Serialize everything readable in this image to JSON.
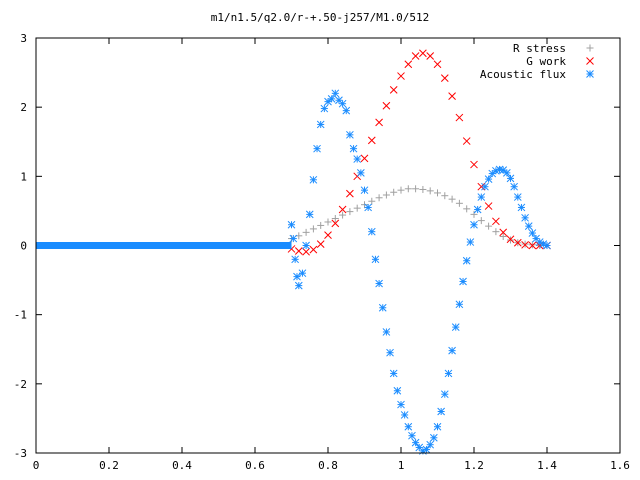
{
  "chart_data": {
    "type": "scatter",
    "title": "m1/n1.5/q2.0/r-+.50-j257/M1.0/512",
    "xlabel": "",
    "ylabel": "",
    "xlim": [
      0,
      1.6
    ],
    "ylim": [
      -3,
      3
    ],
    "xticks": [
      "0",
      "0.2",
      "0.4",
      "0.6",
      "0.8",
      "1",
      "1.2",
      "1.4",
      "1.6"
    ],
    "xtick_values": [
      0,
      0.2,
      0.4,
      0.6,
      0.8,
      1.0,
      1.2,
      1.4,
      1.6
    ],
    "yticks": [
      "-3",
      "-2",
      "-1",
      "0",
      "1",
      "2",
      "3"
    ],
    "ytick_values": [
      -3,
      -2,
      -1,
      0,
      1,
      2,
      3
    ],
    "grid": false,
    "legend_position": "top-right",
    "series": [
      {
        "name": "R stress",
        "marker": "plus",
        "color": "#a0a0a0",
        "points": [
          [
            0.7,
            0.1
          ],
          [
            0.72,
            0.14
          ],
          [
            0.74,
            0.19
          ],
          [
            0.76,
            0.24
          ],
          [
            0.78,
            0.29
          ],
          [
            0.8,
            0.34
          ],
          [
            0.82,
            0.39
          ],
          [
            0.84,
            0.44
          ],
          [
            0.86,
            0.49
          ],
          [
            0.88,
            0.54
          ],
          [
            0.9,
            0.59
          ],
          [
            0.92,
            0.64
          ],
          [
            0.94,
            0.69
          ],
          [
            0.96,
            0.73
          ],
          [
            0.98,
            0.77
          ],
          [
            1.0,
            0.8
          ],
          [
            1.02,
            0.82
          ],
          [
            1.04,
            0.82
          ],
          [
            1.06,
            0.81
          ],
          [
            1.08,
            0.79
          ],
          [
            1.1,
            0.76
          ],
          [
            1.12,
            0.72
          ],
          [
            1.14,
            0.67
          ],
          [
            1.16,
            0.61
          ],
          [
            1.18,
            0.53
          ],
          [
            1.2,
            0.45
          ],
          [
            1.22,
            0.36
          ],
          [
            1.24,
            0.28
          ],
          [
            1.26,
            0.2
          ],
          [
            1.28,
            0.13
          ],
          [
            1.3,
            0.08
          ],
          [
            1.32,
            0.04
          ],
          [
            1.34,
            0.02
          ],
          [
            1.36,
            0.01
          ],
          [
            1.38,
            0.0
          ],
          [
            1.4,
            0.0
          ]
        ]
      },
      {
        "name": "G work",
        "marker": "cross",
        "color": "#ff0000",
        "points": [
          [
            0.7,
            -0.05
          ],
          [
            0.72,
            -0.08
          ],
          [
            0.74,
            -0.09
          ],
          [
            0.76,
            -0.06
          ],
          [
            0.78,
            0.02
          ],
          [
            0.8,
            0.15
          ],
          [
            0.82,
            0.32
          ],
          [
            0.84,
            0.52
          ],
          [
            0.86,
            0.75
          ],
          [
            0.88,
            1.0
          ],
          [
            0.9,
            1.26
          ],
          [
            0.92,
            1.52
          ],
          [
            0.94,
            1.78
          ],
          [
            0.96,
            2.02
          ],
          [
            0.98,
            2.25
          ],
          [
            1.0,
            2.45
          ],
          [
            1.02,
            2.62
          ],
          [
            1.04,
            2.74
          ],
          [
            1.06,
            2.78
          ],
          [
            1.08,
            2.74
          ],
          [
            1.1,
            2.62
          ],
          [
            1.12,
            2.42
          ],
          [
            1.14,
            2.16
          ],
          [
            1.16,
            1.85
          ],
          [
            1.18,
            1.51
          ],
          [
            1.2,
            1.17
          ],
          [
            1.22,
            0.85
          ],
          [
            1.24,
            0.57
          ],
          [
            1.26,
            0.35
          ],
          [
            1.28,
            0.19
          ],
          [
            1.3,
            0.09
          ],
          [
            1.32,
            0.04
          ],
          [
            1.34,
            0.01
          ],
          [
            1.36,
            0.0
          ],
          [
            1.38,
            0.0
          ],
          [
            1.4,
            0.0
          ]
        ]
      },
      {
        "name": "Acoustic flux",
        "marker": "star",
        "color": "#1a8cff",
        "points": [
          [
            0.7,
            0.3
          ],
          [
            0.705,
            0.1
          ],
          [
            0.71,
            -0.2
          ],
          [
            0.715,
            -0.45
          ],
          [
            0.72,
            -0.58
          ],
          [
            0.73,
            -0.4
          ],
          [
            0.74,
            0.0
          ],
          [
            0.75,
            0.45
          ],
          [
            0.76,
            0.95
          ],
          [
            0.77,
            1.4
          ],
          [
            0.78,
            1.75
          ],
          [
            0.79,
            1.98
          ],
          [
            0.8,
            2.08
          ],
          [
            0.81,
            2.12
          ],
          [
            0.82,
            2.2
          ],
          [
            0.83,
            2.1
          ],
          [
            0.84,
            2.05
          ],
          [
            0.85,
            1.95
          ],
          [
            0.86,
            1.6
          ],
          [
            0.87,
            1.4
          ],
          [
            0.88,
            1.25
          ],
          [
            0.89,
            1.05
          ],
          [
            0.9,
            0.8
          ],
          [
            0.91,
            0.55
          ],
          [
            0.92,
            0.2
          ],
          [
            0.93,
            -0.2
          ],
          [
            0.94,
            -0.55
          ],
          [
            0.95,
            -0.9
          ],
          [
            0.96,
            -1.25
          ],
          [
            0.97,
            -1.55
          ],
          [
            0.98,
            -1.85
          ],
          [
            0.99,
            -2.1
          ],
          [
            1.0,
            -2.3
          ],
          [
            1.01,
            -2.45
          ],
          [
            1.02,
            -2.62
          ],
          [
            1.03,
            -2.75
          ],
          [
            1.04,
            -2.85
          ],
          [
            1.05,
            -2.92
          ],
          [
            1.06,
            -2.97
          ],
          [
            1.07,
            -2.95
          ],
          [
            1.08,
            -2.88
          ],
          [
            1.09,
            -2.78
          ],
          [
            1.1,
            -2.62
          ],
          [
            1.11,
            -2.4
          ],
          [
            1.12,
            -2.15
          ],
          [
            1.13,
            -1.85
          ],
          [
            1.14,
            -1.52
          ],
          [
            1.15,
            -1.18
          ],
          [
            1.16,
            -0.85
          ],
          [
            1.17,
            -0.52
          ],
          [
            1.18,
            -0.22
          ],
          [
            1.19,
            0.05
          ],
          [
            1.2,
            0.3
          ],
          [
            1.21,
            0.52
          ],
          [
            1.22,
            0.7
          ],
          [
            1.23,
            0.85
          ],
          [
            1.24,
            0.96
          ],
          [
            1.25,
            1.04
          ],
          [
            1.26,
            1.08
          ],
          [
            1.27,
            1.1
          ],
          [
            1.28,
            1.09
          ],
          [
            1.29,
            1.05
          ],
          [
            1.3,
            0.97
          ],
          [
            1.31,
            0.85
          ],
          [
            1.32,
            0.7
          ],
          [
            1.33,
            0.55
          ],
          [
            1.34,
            0.4
          ],
          [
            1.35,
            0.28
          ],
          [
            1.36,
            0.18
          ],
          [
            1.37,
            0.1
          ],
          [
            1.38,
            0.05
          ],
          [
            1.39,
            0.02
          ],
          [
            1.4,
            0.0
          ]
        ],
        "baseline": {
          "x_from": 0.0,
          "x_to": 0.7,
          "y": 0
        }
      }
    ]
  }
}
